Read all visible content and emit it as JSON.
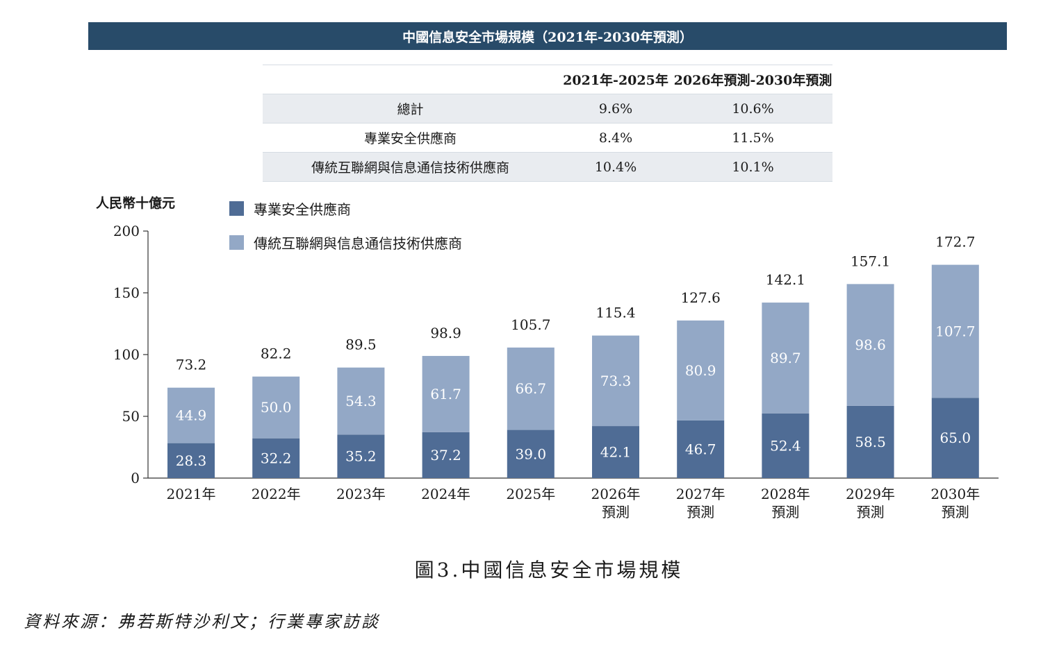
{
  "banner": {
    "title": "中國信息安全市場規模（2021年-2030年預測）"
  },
  "cagr_table": {
    "headers": [
      "",
      "2021年-2025年",
      "2026年預測-2030年預測"
    ],
    "rows": [
      [
        "總計",
        "9.6%",
        "10.6%"
      ],
      [
        "專業安全供應商",
        "8.4%",
        "11.5%"
      ],
      [
        "傳統互聯網與信息通信技術供應商",
        "10.4%",
        "10.1%"
      ]
    ]
  },
  "chart_data": {
    "type": "bar",
    "stacked": true,
    "ylabel": "人民幣十億元",
    "ylim": [
      0,
      200
    ],
    "yticks": [
      0,
      50,
      100,
      150,
      200
    ],
    "categories": [
      "2021年",
      "2022年",
      "2023年",
      "2024年",
      "2025年",
      "2026年\n預測",
      "2027年\n預測",
      "2028年\n預測",
      "2029年\n預測",
      "2030年\n預測"
    ],
    "series": [
      {
        "name": "專業安全供應商",
        "color": "#4f6c95",
        "values": [
          28.3,
          32.2,
          35.2,
          37.2,
          39.0,
          42.1,
          46.7,
          52.4,
          58.5,
          65.0
        ],
        "labels": [
          "28.3",
          "32.2",
          "35.2",
          "37.2",
          "39.0",
          "42.1",
          "46.7",
          "52.4",
          "58.5",
          "65.0"
        ]
      },
      {
        "name": "傳統互聯網與信息通信技術供應商",
        "color": "#93a8c6",
        "values": [
          44.9,
          50.0,
          54.3,
          61.7,
          66.7,
          73.3,
          80.9,
          89.7,
          98.6,
          107.7
        ],
        "labels": [
          "44.9",
          "50.0",
          "54.3",
          "61.7",
          "66.7",
          "73.3",
          "80.9",
          "89.7",
          "98.6",
          "107.7"
        ]
      }
    ],
    "totals": [
      73.2,
      82.2,
      89.5,
      98.9,
      105.7,
      115.4,
      127.6,
      142.1,
      157.1,
      172.7
    ],
    "total_labels": [
      "73.2",
      "82.2",
      "89.5",
      "98.9",
      "105.7",
      "115.4",
      "127.6",
      "142.1",
      "157.1",
      "172.7"
    ],
    "legend": [
      "專業安全供應商",
      "傳統互聯網與信息通信技術供應商"
    ],
    "grid": false
  },
  "caption": "圖3.中國信息安全市場規模",
  "source": "資料來源：弗若斯特沙利文；行業專家訪談"
}
